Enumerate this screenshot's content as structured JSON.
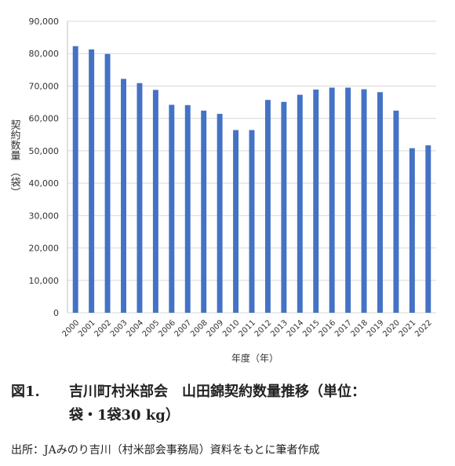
{
  "chart_data": {
    "type": "bar",
    "categories": [
      "2000",
      "2001",
      "2002",
      "2003",
      "2004",
      "2005",
      "2006",
      "2007",
      "2008",
      "2009",
      "2010",
      "2011",
      "2012",
      "2013",
      "2014",
      "2015",
      "2016",
      "2017",
      "2018",
      "2019",
      "2020",
      "2021",
      "2022"
    ],
    "values": [
      82300,
      81300,
      79900,
      72200,
      70900,
      68800,
      64200,
      64100,
      62400,
      61400,
      56400,
      56400,
      65700,
      65100,
      67300,
      68900,
      69500,
      69500,
      69000,
      68100,
      62400,
      50800,
      51700
    ],
    "ylim": [
      0,
      90000
    ],
    "yticks": [
      0,
      10000,
      20000,
      30000,
      40000,
      50000,
      60000,
      70000,
      80000,
      90000
    ],
    "ytick_labels": [
      "0",
      "10,000",
      "20,000",
      "30,000",
      "40,000",
      "50,000",
      "60,000",
      "70,000",
      "80,000",
      "90,000"
    ],
    "ylabel_main": "契約数量",
    "ylabel_unit": "（袋）",
    "xlabel": "年度（年）",
    "grid": true,
    "bar_color": "#4472c4"
  },
  "caption": {
    "figure_number": "図1.",
    "title_line1": "吉川町村米部会　山田錦契約数量推移（単位：",
    "title_line2": "袋・1袋30 kg）"
  },
  "source": "出所：JAみのり吉川（村米部会事務局）資料をもとに筆者作成"
}
